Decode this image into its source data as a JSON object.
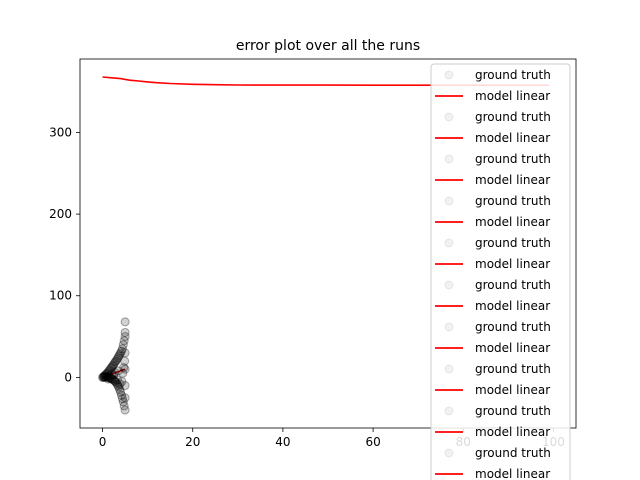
{
  "chart_data": {
    "type": "line",
    "title": "error plot over all the runs",
    "xlabel": "",
    "ylabel": "",
    "xlim": [
      -5,
      105
    ],
    "ylim": [
      -62,
      390
    ],
    "x_ticks": [
      0,
      20,
      40,
      60,
      80,
      100
    ],
    "y_ticks": [
      0,
      100,
      200,
      300
    ],
    "grid": false,
    "legend": {
      "placement": "upper-right",
      "entries": [
        {
          "label": "ground truth",
          "marker": "circle"
        },
        {
          "label": "model linear",
          "marker": "line"
        },
        {
          "label": "ground truth",
          "marker": "circle"
        },
        {
          "label": "model linear",
          "marker": "line"
        },
        {
          "label": "ground truth",
          "marker": "circle"
        },
        {
          "label": "model linear",
          "marker": "line"
        },
        {
          "label": "ground truth",
          "marker": "circle"
        },
        {
          "label": "model linear",
          "marker": "line"
        },
        {
          "label": "ground truth",
          "marker": "circle"
        },
        {
          "label": "model linear",
          "marker": "line"
        },
        {
          "label": "ground truth",
          "marker": "circle"
        },
        {
          "label": "model linear",
          "marker": "line"
        },
        {
          "label": "ground truth",
          "marker": "circle"
        },
        {
          "label": "model linear",
          "marker": "line"
        },
        {
          "label": "ground truth",
          "marker": "circle"
        },
        {
          "label": "model linear",
          "marker": "line"
        },
        {
          "label": "ground truth",
          "marker": "circle"
        },
        {
          "label": "model linear",
          "marker": "line"
        },
        {
          "label": "ground truth",
          "marker": "circle"
        },
        {
          "label": "model linear",
          "marker": "line"
        }
      ]
    },
    "series": [
      {
        "kind": "line",
        "color": "#ff0000",
        "x": [
          0,
          2,
          4,
          6,
          8,
          10,
          12,
          15,
          20,
          25,
          30,
          40,
          50,
          60,
          70,
          80,
          90,
          99
        ],
        "y": [
          368,
          367,
          366,
          364,
          363,
          362,
          361,
          360,
          359,
          358.5,
          358.2,
          358,
          358,
          357.9,
          357.9,
          357.9,
          357.9,
          357.9
        ]
      },
      {
        "kind": "line",
        "color": "#ff0000",
        "x": [
          0,
          5
        ],
        "y": [
          0,
          10
        ]
      },
      {
        "kind": "scatter",
        "color": "#000000",
        "x": [
          0,
          0.2,
          0.4,
          0.6,
          0.8,
          1.0,
          1.2,
          1.4,
          1.6,
          1.8,
          2.0,
          2.2,
          2.4,
          2.6,
          2.8,
          3.0,
          3.2,
          3.4,
          3.6,
          3.8,
          4.0,
          4.2,
          4.4,
          4.6,
          4.8,
          5.0,
          5.0,
          5.0,
          5.0,
          5.0,
          5.0,
          5.0,
          4.8,
          4.6,
          4.4,
          4.2,
          4.0,
          3.8,
          3.6,
          3.4,
          3.2,
          3.0,
          2.8,
          2.6,
          2.4,
          2.2,
          2.0,
          1.8,
          1.6,
          1.4,
          1.2,
          1.0,
          0.8,
          0.6,
          0.4,
          0.2,
          5.0,
          4.9,
          4.7,
          4.5,
          3.5,
          2.5,
          1.5,
          0.5,
          4.3,
          3.9,
          3.3,
          2.7,
          2.1,
          1.3
        ],
        "y": [
          0,
          1,
          2,
          3,
          4,
          5,
          6,
          8,
          9,
          11,
          12,
          14,
          15,
          17,
          19,
          20,
          22,
          24,
          26,
          28,
          30,
          32,
          35,
          40,
          45,
          55,
          68,
          50,
          30,
          10,
          -10,
          -40,
          -35,
          -30,
          -26,
          -22,
          -18,
          -15,
          -12,
          -10,
          -8,
          -6,
          -5,
          -4,
          -3,
          -2,
          -2,
          -1,
          -1,
          0,
          0,
          1,
          1,
          0,
          0,
          0,
          -25,
          20,
          12,
          5,
          8,
          3,
          2,
          1,
          -5,
          -8,
          -3,
          6,
          4,
          -2
        ]
      }
    ]
  }
}
